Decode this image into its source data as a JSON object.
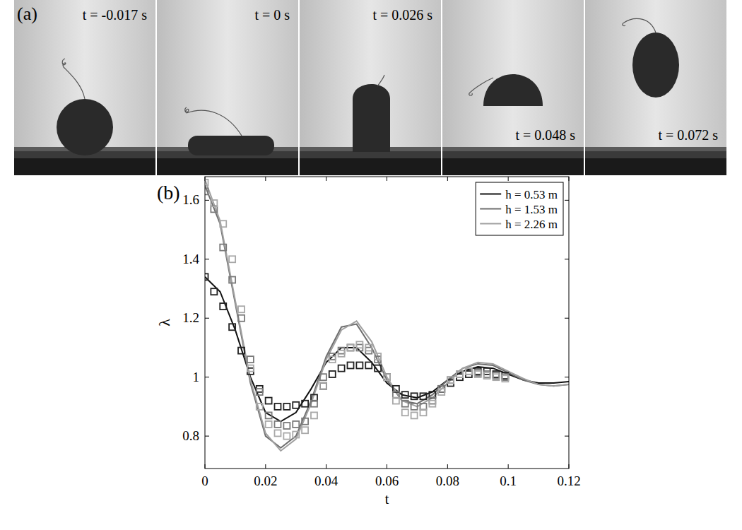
{
  "panel_a": {
    "label": "(a)",
    "frames": [
      "t = -0.017 s",
      "t = 0 s",
      "t = 0.026 s",
      "t = 0.048 s",
      "t = 0.072 s"
    ]
  },
  "chart_data": {
    "type": "line",
    "label": "(b)",
    "x_label": "t",
    "y_label": "λ",
    "xlim": [
      0,
      0.12
    ],
    "xticks": [
      0,
      0.02,
      0.04,
      0.06,
      0.08,
      0.1,
      0.12
    ],
    "ylim": [
      0.69,
      1.68
    ],
    "yticks": [
      0.8,
      1,
      1.2,
      1.4,
      1.6
    ],
    "legend": "top-right",
    "grid": false,
    "series": [
      {
        "name": "h = 0.53 m",
        "type": "line",
        "color": "#111111",
        "line_style": "solid",
        "x": [
          0,
          0.005,
          0.01,
          0.015,
          0.02,
          0.025,
          0.03,
          0.035,
          0.04,
          0.045,
          0.05,
          0.055,
          0.06,
          0.065,
          0.07,
          0.075,
          0.08,
          0.085,
          0.09,
          0.095,
          0.1,
          0.105,
          0.11,
          0.115,
          0.12
        ],
        "values": [
          1.34,
          1.29,
          1.16,
          1.0,
          0.88,
          0.85,
          0.88,
          0.96,
          1.05,
          1.1,
          1.1,
          1.05,
          0.98,
          0.94,
          0.93,
          0.95,
          0.99,
          1.02,
          1.035,
          1.03,
          1.01,
          0.99,
          0.98,
          0.98,
          0.985
        ]
      },
      {
        "name": "h = 1.53 m",
        "type": "line",
        "color": "#6e6e6e",
        "line_style": "solid",
        "x": [
          0,
          0.005,
          0.01,
          0.015,
          0.02,
          0.025,
          0.03,
          0.035,
          0.04,
          0.045,
          0.05,
          0.055,
          0.06,
          0.065,
          0.07,
          0.075,
          0.08,
          0.085,
          0.09,
          0.095,
          0.1,
          0.105,
          0.11,
          0.115,
          0.12
        ],
        "values": [
          1.65,
          1.52,
          1.25,
          0.98,
          0.8,
          0.76,
          0.8,
          0.92,
          1.07,
          1.17,
          1.18,
          1.1,
          0.99,
          0.92,
          0.91,
          0.94,
          0.99,
          1.03,
          1.045,
          1.04,
          1.015,
          0.99,
          0.975,
          0.97,
          0.975
        ]
      },
      {
        "name": "h = 2.26  m",
        "type": "line",
        "color": "#a0a0a0",
        "line_style": "solid",
        "x": [
          0,
          0.005,
          0.01,
          0.015,
          0.02,
          0.025,
          0.03,
          0.035,
          0.04,
          0.045,
          0.05,
          0.055,
          0.06,
          0.065,
          0.07,
          0.075,
          0.08,
          0.085,
          0.09,
          0.095,
          0.1,
          0.105,
          0.11,
          0.115,
          0.12
        ],
        "values": [
          1.67,
          1.53,
          1.26,
          0.99,
          0.81,
          0.75,
          0.79,
          0.91,
          1.06,
          1.16,
          1.19,
          1.12,
          1.0,
          0.92,
          0.9,
          0.93,
          0.98,
          1.03,
          1.05,
          1.045,
          1.02,
          0.995,
          0.975,
          0.97,
          0.975
        ]
      },
      {
        "type": "scatter",
        "marker": "square",
        "color": "#222222",
        "x": [
          0,
          0.003,
          0.006,
          0.009,
          0.012,
          0.015,
          0.018,
          0.021,
          0.024,
          0.027,
          0.03,
          0.033,
          0.036,
          0.039,
          0.042,
          0.045,
          0.048,
          0.051,
          0.054,
          0.057,
          0.06,
          0.063,
          0.066,
          0.069,
          0.072,
          0.075,
          0.078,
          0.081,
          0.084,
          0.087,
          0.09,
          0.093,
          0.096,
          0.099
        ],
        "values": [
          1.34,
          1.29,
          1.24,
          1.17,
          1.09,
          1.02,
          0.96,
          0.92,
          0.9,
          0.9,
          0.905,
          0.91,
          0.93,
          0.97,
          1.01,
          1.03,
          1.04,
          1.04,
          1.04,
          1.03,
          1.0,
          0.96,
          0.94,
          0.935,
          0.935,
          0.94,
          0.96,
          0.98,
          1.0,
          1.01,
          1.02,
          1.02,
          1.01,
          1.005
        ]
      },
      {
        "type": "scatter",
        "marker": "square",
        "color": "#7a7a7a",
        "x": [
          0,
          0.003,
          0.006,
          0.009,
          0.012,
          0.015,
          0.018,
          0.021,
          0.024,
          0.027,
          0.03,
          0.033,
          0.036,
          0.039,
          0.042,
          0.045,
          0.048,
          0.051,
          0.054,
          0.057,
          0.06,
          0.063,
          0.066,
          0.069,
          0.072,
          0.075,
          0.078,
          0.081,
          0.084,
          0.087,
          0.09,
          0.093,
          0.096,
          0.099
        ],
        "values": [
          1.63,
          1.57,
          1.44,
          1.33,
          1.2,
          1.06,
          0.95,
          0.87,
          0.84,
          0.835,
          0.84,
          0.85,
          0.91,
          1.0,
          1.07,
          1.09,
          1.1,
          1.1,
          1.09,
          1.06,
          1.0,
          0.94,
          0.91,
          0.9,
          0.9,
          0.92,
          0.96,
          0.99,
          1.01,
          1.02,
          1.015,
          1.01,
          1.005,
          1.0
        ]
      },
      {
        "type": "scatter",
        "marker": "square",
        "color": "#a8a8a8",
        "x": [
          0,
          0.003,
          0.006,
          0.009,
          0.012,
          0.015,
          0.018,
          0.021,
          0.024,
          0.027,
          0.03,
          0.033,
          0.036,
          0.039,
          0.042,
          0.045,
          0.048,
          0.051,
          0.054,
          0.057,
          0.06,
          0.063,
          0.066,
          0.069,
          0.072,
          0.075,
          0.078,
          0.081,
          0.084,
          0.087,
          0.09,
          0.093,
          0.096,
          0.099
        ],
        "values": [
          1.66,
          1.59,
          1.52,
          1.4,
          1.23,
          1.03,
          0.9,
          0.84,
          0.81,
          0.8,
          0.805,
          0.82,
          0.87,
          0.97,
          1.06,
          1.08,
          1.1,
          1.11,
          1.1,
          1.07,
          1.0,
          0.92,
          0.88,
          0.87,
          0.88,
          0.91,
          0.95,
          0.99,
          1.01,
          1.02,
          1.01,
          1.005,
          1.0,
          0.995
        ]
      }
    ]
  }
}
